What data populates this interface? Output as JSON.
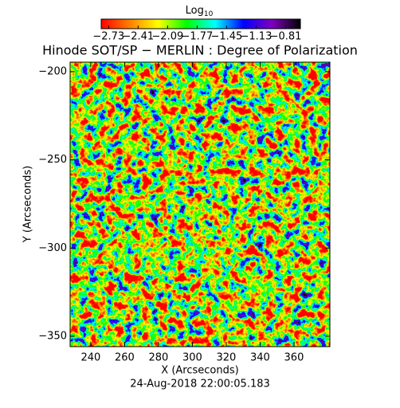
{
  "chart_data": {
    "type": "heatmap",
    "title": "Hinode SOT/SP − MERLIN : Degree of Polarization",
    "colorbar_label": "Log",
    "colorbar_label_sub": "10",
    "x_label": "X (Arcseconds)",
    "y_label": "Y (Arcseconds)",
    "subtitle": "24-Aug-2018 22:00:05.183",
    "xlim": [
      227.8,
      381.2
    ],
    "xticks": [
      240,
      260,
      280,
      300,
      320,
      340,
      360
    ],
    "ylim": [
      -355.9,
      -194.6
    ],
    "yticks": [
      {
        "value": -350,
        "label": "−350"
      },
      {
        "value": -300,
        "label": "−300"
      },
      {
        "value": -250,
        "label": "−250"
      },
      {
        "value": -200,
        "label": "−200"
      }
    ],
    "clim": [
      -2.81,
      -0.65
    ],
    "cticks": [
      {
        "value": -2.73,
        "label": "−2.73"
      },
      {
        "value": -2.41,
        "label": "−2.41"
      },
      {
        "value": -2.09,
        "label": "−2.09"
      },
      {
        "value": -1.77,
        "label": "−1.77"
      },
      {
        "value": -1.45,
        "label": "−1.45"
      },
      {
        "value": -1.13,
        "label": "−1.13"
      },
      {
        "value": -0.81,
        "label": "−0.81"
      }
    ],
    "colormap": [
      "#ff0000",
      "#ff7f00",
      "#ffff00",
      "#00ff00",
      "#00ffff",
      "#0000ff",
      "#7f00bf",
      "#000000"
    ]
  }
}
